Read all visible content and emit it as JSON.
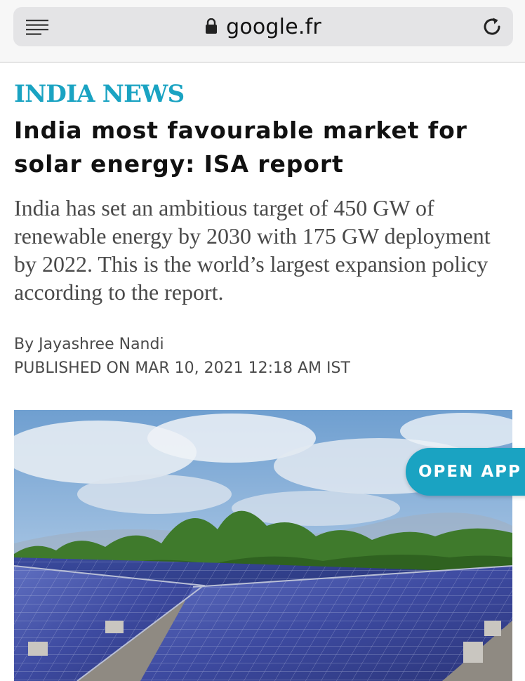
{
  "browser": {
    "url": "google.fr",
    "menu_icon": "hamburger-menu-icon",
    "lock_icon": "lock-icon",
    "reload_icon": "reload-icon"
  },
  "article": {
    "section": "INDIA NEWS",
    "headline": "India most favourable market for solar energy: ISA report",
    "summary": "India has set an ambitious target of 450 GW of renewable energy by 2030 with 175 GW deployment by 2022. This is the world’s largest expansion policy according to the report.",
    "byline": "By Jayashree Nandi",
    "published": "PUBLISHED ON MAR 10, 2021 12:18 AM IST"
  },
  "cta": {
    "open_app": "OPEN APP"
  },
  "colors": {
    "accent": "#1aa3c2",
    "headline": "#111111",
    "body_text": "#4a4a4a"
  }
}
